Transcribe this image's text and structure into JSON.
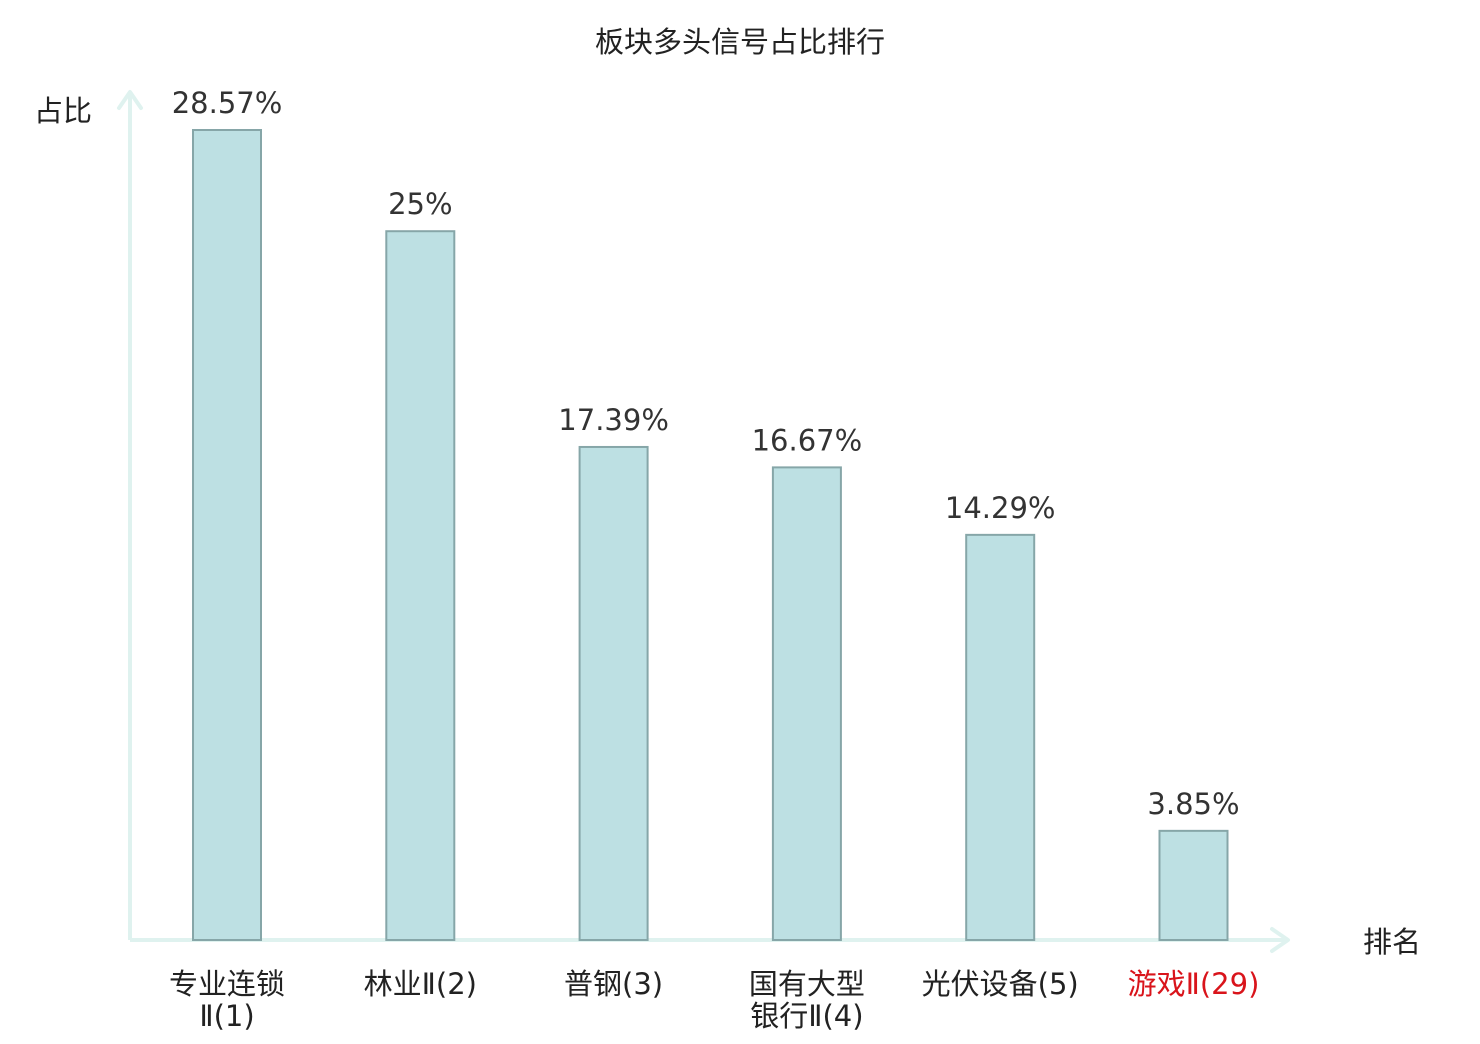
{
  "chart_data": {
    "type": "bar",
    "title": "板块多头信号占比排行",
    "ylabel": "占比",
    "xlabel": "排名",
    "ylim": [
      0,
      30
    ],
    "grid": false,
    "categories": [
      {
        "name": [
          "专业连锁",
          "Ⅱ(1)"
        ],
        "rank_label": "",
        "highlight": false
      },
      {
        "name": [
          "林业Ⅱ(2)"
        ],
        "highlight": false
      },
      {
        "name": [
          "普钢(3)"
        ],
        "highlight": false
      },
      {
        "name": [
          "国有大型",
          "银行Ⅱ(4)"
        ],
        "highlight": false
      },
      {
        "name": [
          "光伏设备(5)"
        ],
        "highlight": false
      },
      {
        "name": [
          "游戏Ⅱ(29)"
        ],
        "highlight": true
      }
    ],
    "values": [
      28.57,
      25,
      17.39,
      16.67,
      14.29,
      3.85
    ],
    "value_labels": [
      "28.57%",
      "25%",
      "17.39%",
      "16.67%",
      "14.29%",
      "3.85%"
    ],
    "colors": {
      "bar_fill": "#bde0e3",
      "bar_stroke": "#86a6a8",
      "axis": "#dff2ef",
      "text": "#222222",
      "value_text": "#333333",
      "highlight_text": "#d9141b"
    }
  }
}
